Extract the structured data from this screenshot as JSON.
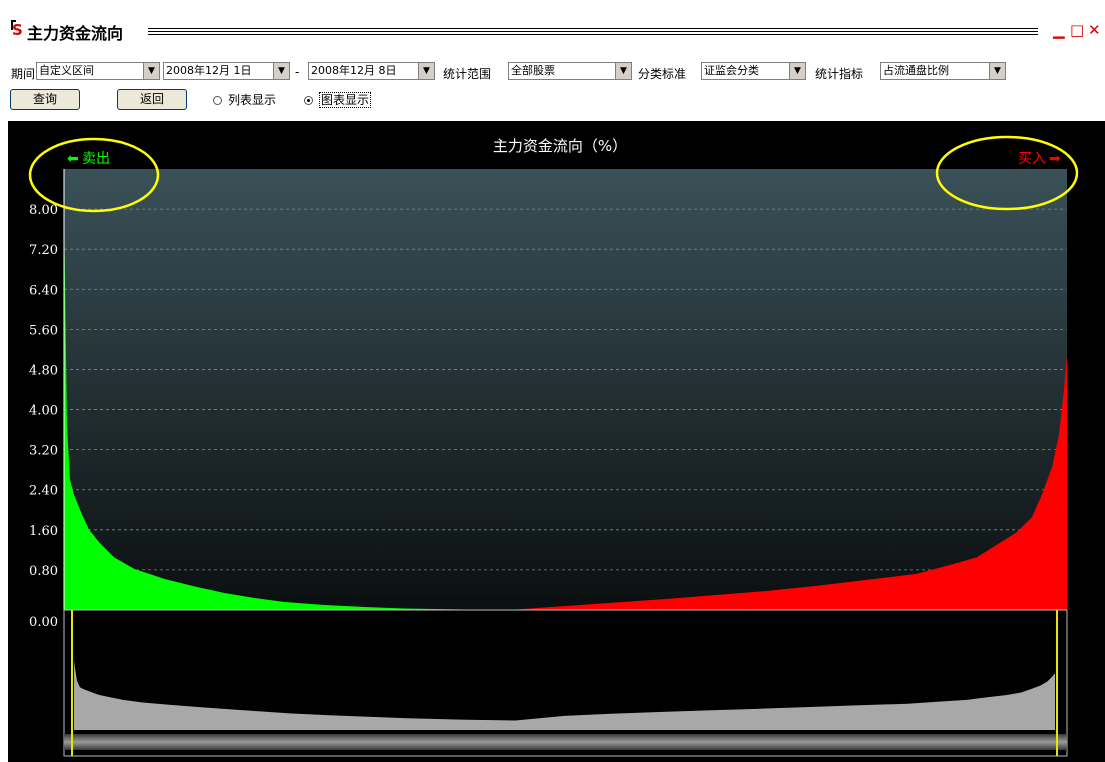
{
  "window": {
    "logo": "S",
    "title": "主力资金流向",
    "min_glyph": "▁",
    "max_glyph": "□",
    "close_glyph": "✕"
  },
  "toolbar": {
    "period_label": "期间",
    "period_value": "自定义区间",
    "start_date": "2008年12月 1日",
    "dash": "-",
    "end_date": "2008年12月 8日",
    "scope_label": "统计范围",
    "scope_value": "全部股票",
    "category_label": "分类标准",
    "category_value": "证监会分类",
    "indicator_label": "统计指标",
    "indicator_value": "占流通盘比例",
    "query_button": "查询",
    "back_button": "返回",
    "radio_list": "列表显示",
    "radio_chart": "图表显示",
    "dropdown_arrow": "▼"
  },
  "chart_data": {
    "type": "area",
    "title": "主力资金流向（%）",
    "sell_label": "卖出",
    "buy_label": "买入",
    "y_ticks": [
      "8.00",
      "7.20",
      "6.40",
      "5.60",
      "4.80",
      "4.00",
      "3.20",
      "2.40",
      "1.60",
      "0.80",
      "0.00"
    ],
    "ylim": [
      0,
      8.8
    ],
    "grid": true,
    "sell_color": "#00ff00",
    "buy_color": "#ff0000",
    "highlight_color": "#ffff00",
    "overview_color": "#a8a8a8",
    "x": [
      0,
      0.003,
      0.006,
      0.01,
      0.014,
      0.018,
      0.025,
      0.035,
      0.05,
      0.07,
      0.1,
      0.13,
      0.16,
      0.19,
      0.22,
      0.26,
      0.3,
      0.34,
      0.4,
      0.45,
      0.5,
      0.55,
      0.6,
      0.65,
      0.7,
      0.75,
      0.8,
      0.85,
      0.88,
      0.91,
      0.93,
      0.95,
      0.965,
      0.975,
      0.985,
      0.992,
      0.997,
      1.0
    ],
    "sell_values": [
      8.0,
      3.7,
      2.6,
      2.3,
      2.1,
      1.9,
      1.6,
      1.35,
      1.05,
      0.82,
      0.62,
      0.47,
      0.34,
      0.24,
      0.16,
      0.1,
      0.06,
      0.03,
      0.01,
      0.005
    ],
    "buy_values": [
      0.01,
      0.08,
      0.15,
      0.22,
      0.3,
      0.38,
      0.48,
      0.6,
      0.72,
      0.88,
      1.05,
      1.3,
      1.55,
      1.85,
      2.3,
      2.85,
      3.5,
      4.4,
      5.1
    ]
  }
}
